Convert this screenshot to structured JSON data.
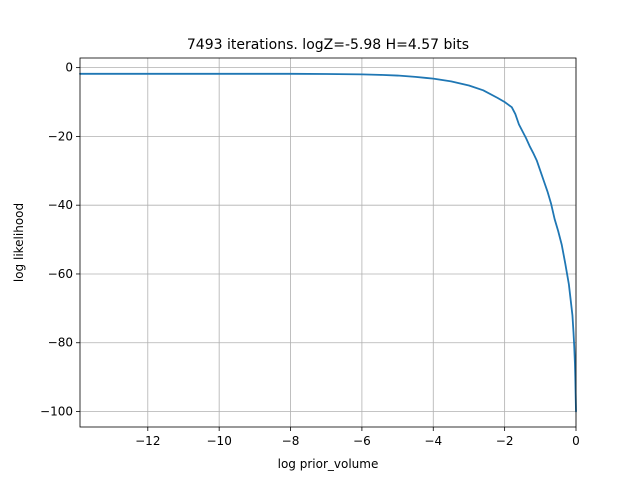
{
  "chart_data": {
    "type": "line",
    "title": "7493 iterations. logZ=-5.98 H=4.57 bits",
    "xlabel": "log prior_volume",
    "ylabel": "log likelihood",
    "xlim": [
      -13.9,
      0
    ],
    "ylim": [
      -104.5,
      2.8
    ],
    "xticks": [
      -12,
      -10,
      -8,
      -6,
      -4,
      -2,
      0
    ],
    "yticks": [
      0,
      -20,
      -40,
      -60,
      -80,
      -100
    ],
    "xtick_labels": [
      "−12",
      "−10",
      "−8",
      "−6",
      "−4",
      "−2",
      "0"
    ],
    "ytick_labels": [
      "0",
      "−20",
      "−40",
      "−60",
      "−80",
      "−100"
    ],
    "grid": true,
    "series": [
      {
        "color": "#1f77b4",
        "x": [
          -13.9,
          -12,
          -10,
          -8,
          -7,
          -6,
          -5.5,
          -5,
          -4.5,
          -4.2,
          -4,
          -3.5,
          -3,
          -2.6,
          -2.2,
          -2.0,
          -1.8,
          -1.7,
          -1.6,
          -1.5,
          -1.4,
          -1.3,
          -1.2,
          -1.1,
          -1.0,
          -0.9,
          -0.8,
          -0.7,
          -0.6,
          -0.5,
          -0.4,
          -0.3,
          -0.2,
          -0.15,
          -0.1,
          -0.07,
          -0.05,
          -0.03,
          -0.02,
          -0.01,
          0
        ],
        "y": [
          -1.8,
          -1.8,
          -1.8,
          -1.8,
          -1.85,
          -1.95,
          -2.1,
          -2.3,
          -2.7,
          -3.0,
          -3.2,
          -4.0,
          -5.2,
          -6.6,
          -8.8,
          -10.0,
          -11.5,
          -13.5,
          -16.5,
          -18.5,
          -20.5,
          -22.8,
          -24.8,
          -27.0,
          -30.0,
          -33.0,
          -36.0,
          -39.5,
          -44.0,
          -47.5,
          -51.5,
          -57.0,
          -63.0,
          -67.5,
          -72.0,
          -77.0,
          -81.0,
          -86.0,
          -90.0,
          -95.0,
          -100.0
        ]
      }
    ]
  }
}
